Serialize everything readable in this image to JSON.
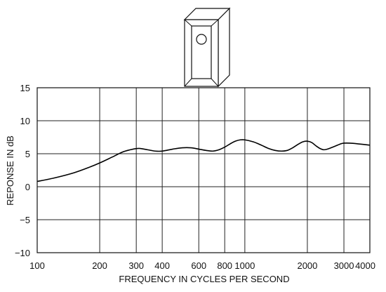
{
  "chart_data": {
    "type": "line",
    "title": "",
    "xlabel": "FREQUENCY IN CYCLES PER SECOND",
    "ylabel": "REPONSE IN dB",
    "x_scale": "log",
    "xlim": [
      100,
      4000
    ],
    "ylim": [
      -10,
      15
    ],
    "x_ticks": [
      100,
      200,
      300,
      400,
      600,
      800,
      1000,
      2000,
      3000,
      4000
    ],
    "x_tick_labels": [
      "100",
      "200",
      "300",
      "400",
      "600",
      "800",
      "1000",
      "2000",
      "3000",
      "4000"
    ],
    "y_ticks": [
      15,
      10,
      5,
      0,
      -5,
      -10
    ],
    "y_tick_labels": [
      "15",
      "10",
      "5",
      "0",
      "−5",
      "−10"
    ],
    "grid": true,
    "series": [
      {
        "x": [
          100,
          120,
          150,
          180,
          200,
          230,
          260,
          290,
          310,
          340,
          370,
          400,
          450,
          500,
          550,
          600,
          650,
          700,
          750,
          800,
          850,
          900,
          950,
          1000,
          1100,
          1200,
          1300,
          1400,
          1500,
          1600,
          1700,
          1800,
          1900,
          2000,
          2100,
          2200,
          2300,
          2400,
          2500,
          2700,
          2900,
          3000,
          3200,
          3500,
          4000
        ],
        "y": [
          0.8,
          1.3,
          2.1,
          3.0,
          3.6,
          4.5,
          5.3,
          5.7,
          5.8,
          5.6,
          5.4,
          5.4,
          5.7,
          5.9,
          5.9,
          5.7,
          5.5,
          5.4,
          5.6,
          6.0,
          6.5,
          6.9,
          7.1,
          7.1,
          6.8,
          6.3,
          5.8,
          5.5,
          5.4,
          5.5,
          5.9,
          6.4,
          6.8,
          6.9,
          6.7,
          6.2,
          5.8,
          5.6,
          5.7,
          6.1,
          6.5,
          6.6,
          6.6,
          6.5,
          6.3
        ]
      }
    ]
  },
  "labels": {
    "xlabel": "FREQUENCY IN CYCLES PER SECOND",
    "ylabel": "REPONSE IN dB"
  },
  "illustration": {
    "icon": "speaker-cabinet-icon"
  }
}
